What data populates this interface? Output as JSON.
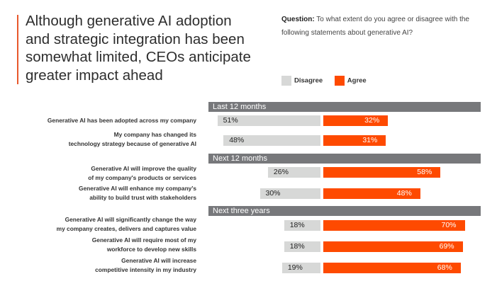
{
  "title": "Although generative AI adoption and strategic integration has been somewhat limited, CEOs anticipate greater impact ahead",
  "question_label": "Question:",
  "question_text": "To what extent do you agree or disagree with the following statements about generative AI?",
  "legend": [
    {
      "label": "Disagree",
      "color": "#d7d8d7"
    },
    {
      "label": "Agree",
      "color": "#fe4a00"
    }
  ],
  "chart_data": {
    "type": "bar",
    "orientation": "horizontal-diverging",
    "title": "Although generative AI adoption and strategic integration has been somewhat limited, CEOs anticipate greater impact ahead",
    "series_names": [
      "Disagree",
      "Agree"
    ],
    "colors": {
      "Disagree": "#d7d8d7",
      "Agree": "#fe4a00",
      "header": "#77787b"
    },
    "unit": "%",
    "groups": [
      {
        "name": "Last 12 months",
        "items": [
          {
            "label": "Generative AI has been adopted across my company",
            "disagree": 51,
            "agree": 32
          },
          {
            "label": "My company has changed its technology strategy because of generative AI",
            "disagree": 48,
            "agree": 31
          }
        ]
      },
      {
        "name": "Next 12 months",
        "items": [
          {
            "label": "Generative AI will improve the quality of my company's products or services",
            "disagree": 26,
            "agree": 58
          },
          {
            "label": "Generative AI will enhance my company's ability to build trust with stakeholders",
            "disagree": 30,
            "agree": 48
          }
        ]
      },
      {
        "name": "Next three years",
        "items": [
          {
            "label": "Generative AI will significantly change the way my company creates, delivers and captures value",
            "disagree": 18,
            "agree": 70
          },
          {
            "label": "Generative AI will require most of my workforce to develop new skills",
            "disagree": 18,
            "agree": 69
          },
          {
            "label": "Generative AI will increase competitive intensity in my industry",
            "disagree": 19,
            "agree": 68
          }
        ]
      }
    ]
  },
  "label_lines": [
    [
      "Generative AI has been adopted across my company"
    ],
    [
      "My company has changed its",
      "technology strategy because of generative AI"
    ],
    [
      "Generative AI will improve the quality",
      "of my company's products or services"
    ],
    [
      "Generative AI will enhance my company's",
      "ability to build trust with stakeholders"
    ],
    [
      "Generative AI will significantly change the way",
      "my company creates, delivers and captures value"
    ],
    [
      "Generative AI will require most of my",
      "workforce to develop new skills"
    ],
    [
      "Generative AI will increase",
      "competitive intensity in my industry"
    ]
  ]
}
